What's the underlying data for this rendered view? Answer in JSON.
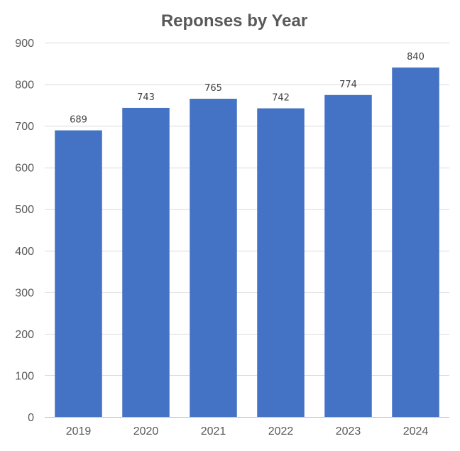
{
  "chart_data": {
    "type": "bar",
    "title": "Reponses by Year",
    "categories": [
      "2019",
      "2020",
      "2021",
      "2022",
      "2023",
      "2024"
    ],
    "values": [
      689,
      743,
      765,
      742,
      774,
      840
    ],
    "data_labels": [
      "689",
      "743",
      "765",
      "742",
      "774",
      "840"
    ],
    "ylim": [
      0,
      900
    ],
    "yticks": [
      0,
      100,
      200,
      300,
      400,
      500,
      600,
      700,
      800,
      900
    ],
    "ytick_labels": [
      "0",
      "100",
      "200",
      "300",
      "400",
      "500",
      "600",
      "700",
      "800",
      "900"
    ],
    "grid": true,
    "legend": "none",
    "bar_color": "#4472C4"
  }
}
